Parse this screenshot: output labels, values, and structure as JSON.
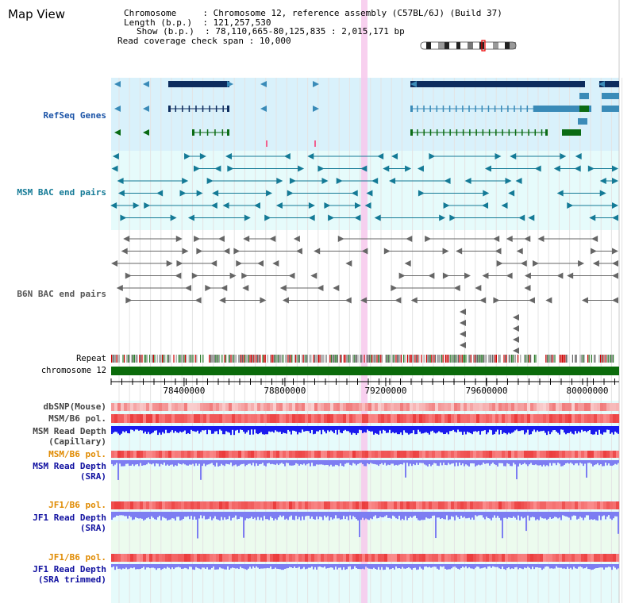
{
  "app": {
    "title": "Map View"
  },
  "info": {
    "chromosome_label": "Chromosome",
    "chromosome_value": "Chromosome 12, reference assembly (C57BL/6J) (Build 37)",
    "length_label": "Length (b.p.)",
    "length_value": "121,257,530",
    "show_label": "Show (b.p.)",
    "show_value": "78,110,665-80,125,835 : 2,015,171 bp",
    "read_span_label": "Read coverage check span",
    "read_span_value": "10,000"
  },
  "tracks": {
    "refseq": "RefSeq Genes",
    "msm_bac": "MSM BAC end pairs",
    "b6n_bac": "B6N BAC end pairs",
    "repeat": "Repeat",
    "chromosome": "chromosome 12",
    "dbsnp": "dbSNP(Mouse)",
    "msm_b6_pol": "MSM/B6 pol.",
    "msm_depth_cap_1": "MSM Read Depth",
    "msm_depth_cap_2": "(Capillary)",
    "msm_b6_pol_2": "MSM/B6 pol.",
    "msm_depth_sra_1": "MSM Read Depth",
    "msm_depth_sra_2": "(SRA)",
    "jf1_b6_pol": "JF1/B6 pol.",
    "jf1_depth_sra_1": "JF1 Read Depth",
    "jf1_depth_sra_2": "(SRA)",
    "jf1_b6_pol_2": "JF1/B6 pol.",
    "jf1_depth_trim_1": "JF1 Read Depth",
    "jf1_depth_trim_2": "(SRA trimmed)"
  },
  "axis": {
    "start": 78110665,
    "end": 80125835,
    "ticks": [
      "78400000",
      "78800000",
      "79200000",
      "79600000",
      "80000000"
    ]
  },
  "colors": {
    "refseq_bg": "#d9f1fb",
    "track_bg": "#e6fbfb",
    "gene_dark": "#0d2c5e",
    "gene_mid": "#3a8bb8",
    "gene_green": "#0a6b14",
    "msm_pair": "#147a96",
    "b6n_pair": "#666666",
    "chromosome": "#0b6b0b",
    "highlight": "#f7c8ec",
    "depth_blue": "#1a1aee",
    "depth_light": "#7d7df2",
    "pol_red": "#f05050"
  }
}
